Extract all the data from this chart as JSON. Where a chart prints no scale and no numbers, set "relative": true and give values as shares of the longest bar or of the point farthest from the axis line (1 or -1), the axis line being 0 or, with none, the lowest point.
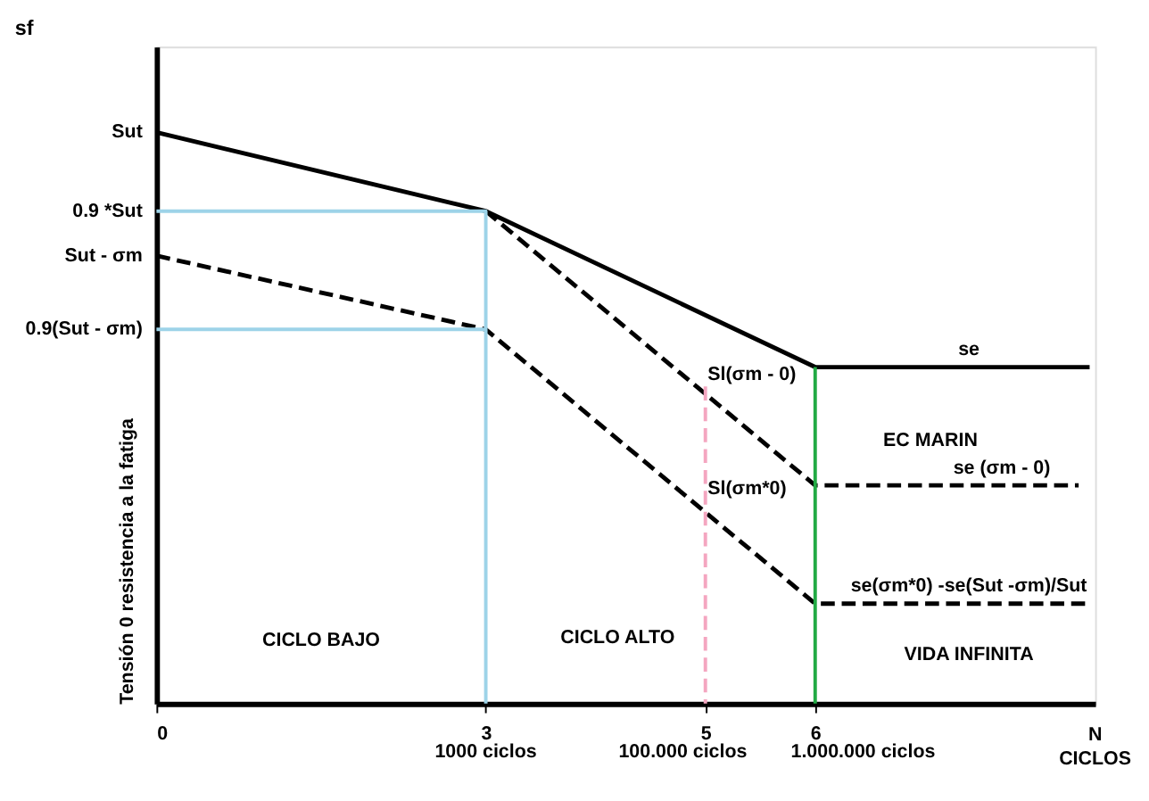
{
  "chart_data": {
    "type": "line",
    "title": "sf",
    "xlabel": "N CICLOS",
    "ylabel": "Tensión 0 resistencia a la fatiga",
    "relative": true,
    "xlim": [
      0,
      8.55
    ],
    "xticks": [
      0,
      3,
      5,
      6
    ],
    "grid": false,
    "series": [
      {
        "color": "#000000",
        "line_style": "solid",
        "x": [
          0,
          3,
          6,
          8.5
        ],
        "values": [
          1,
          0.862,
          0.589,
          0.589
        ]
      },
      {
        "color": "#000000",
        "line_style": "dashed",
        "x": [
          3,
          6,
          8.4
        ],
        "values": [
          0.862,
          0.382,
          0.382
        ]
      },
      {
        "color": "#000000",
        "line_style": "dashed",
        "x": [
          0,
          3,
          6,
          8.5
        ],
        "values": [
          0.784,
          0.655,
          0.175,
          0.175
        ]
      },
      {
        "color": "#9dd3e8",
        "line_style": "solid",
        "x": [
          0,
          3,
          3
        ],
        "values": [
          0.862,
          0.862,
          0
        ]
      },
      {
        "color": "#9dd3e8",
        "line_style": "solid",
        "x": [
          0,
          3
        ],
        "values": [
          0.655,
          0.655
        ]
      },
      {
        "color": "#f4a6c0",
        "line_style": "dashed",
        "x": [
          5,
          5
        ],
        "values": [
          0.555,
          0
        ]
      },
      {
        "color": "#22aa44",
        "line_style": "solid",
        "x": [
          6,
          6
        ],
        "values": [
          0.589,
          0
        ]
      }
    ],
    "annotations": [
      {
        "text": "Sut",
        "x": 0,
        "y": 1
      },
      {
        "text": "0.9 *Sut",
        "x": 0,
        "y": 0.862
      },
      {
        "text": "Sut - σm",
        "x": 0,
        "y": 0.784
      },
      {
        "text": "0.9(Sut - σm)",
        "x": 0,
        "y": 0.655
      },
      {
        "text": "se",
        "x": 7.4,
        "y": 0.589
      },
      {
        "text": "se (σm - 0)",
        "x": 7.7,
        "y": 0.382
      },
      {
        "text": "se(σm*0) -se(Sut -σm)/Sut",
        "x": 7.4,
        "y": 0.175
      },
      {
        "text": "1000 ciclos",
        "x": 3,
        "y": 0
      },
      {
        "text": "100.000 ciclos",
        "x": 5,
        "y": 0
      },
      {
        "text": "1.000.000 ciclos",
        "x": 6,
        "y": 0
      },
      "EC MARIN",
      "Sl(σm - 0)",
      "Sl(σm*0)",
      "CICLO BAJO",
      "CICLO ALTO",
      "VIDA INFINITA"
    ]
  }
}
